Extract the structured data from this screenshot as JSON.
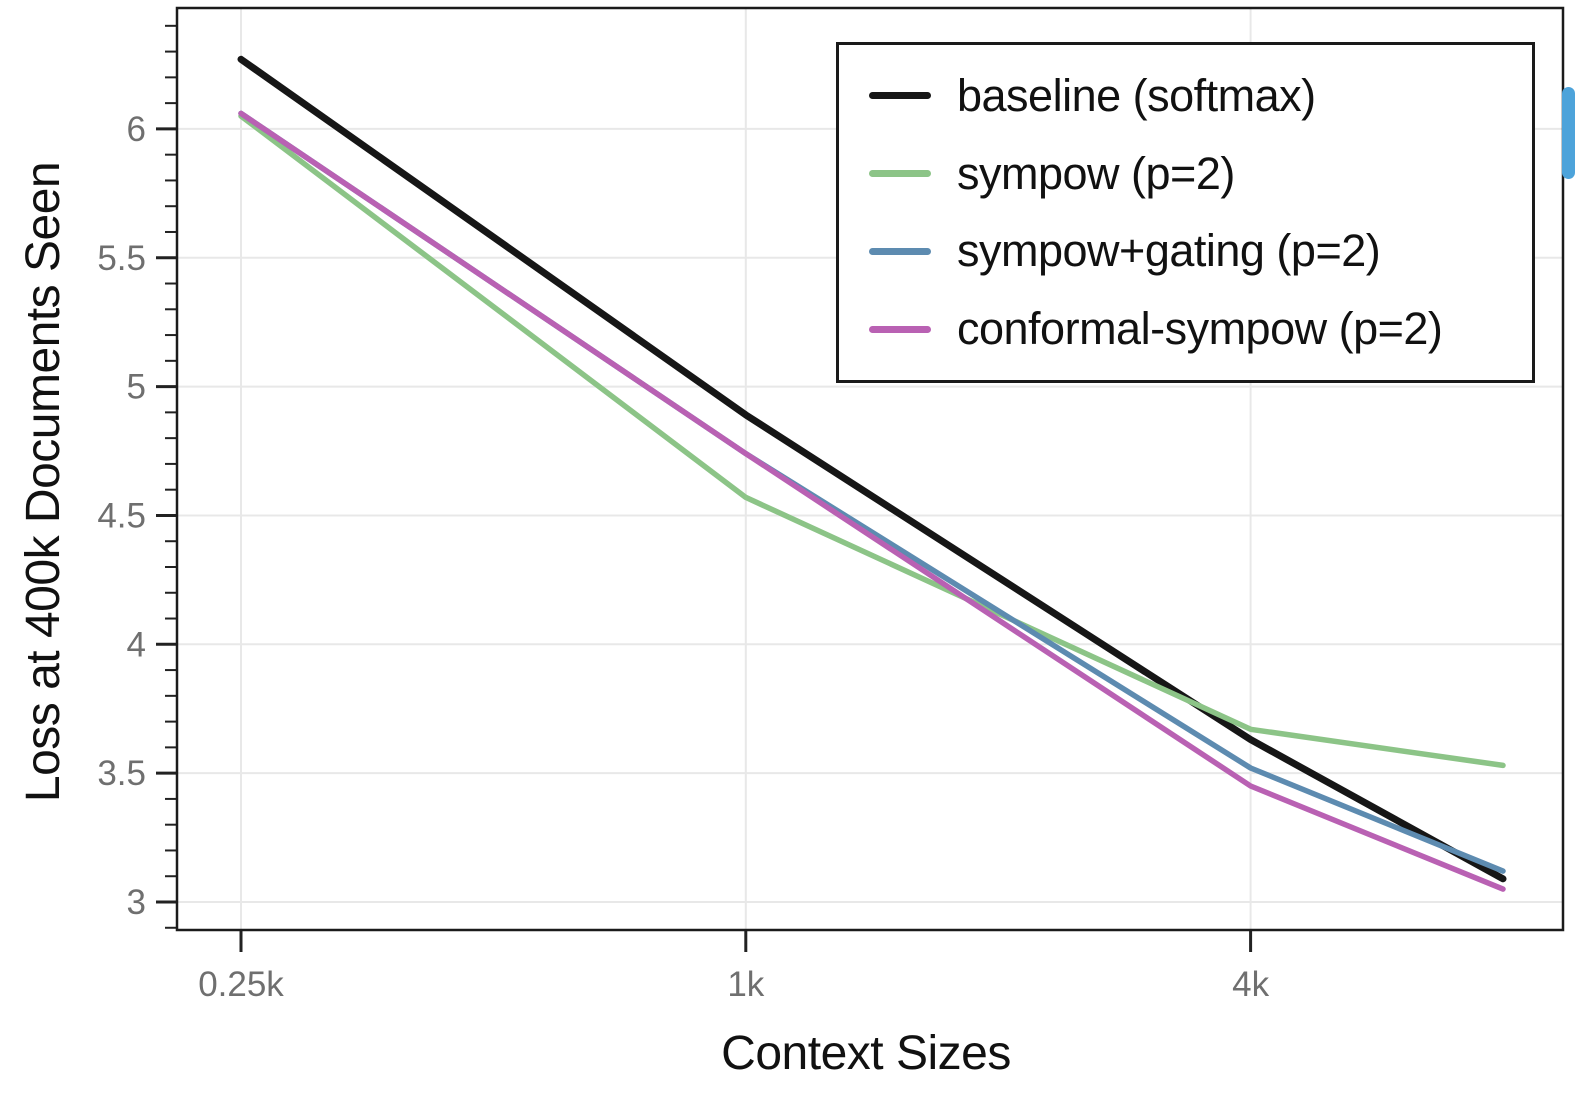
{
  "ui": {
    "scrollbar": {
      "color": "#4da3da"
    }
  },
  "chart_data": {
    "type": "line",
    "title": "",
    "xlabel": "Context Sizes",
    "ylabel": "Loss at 400k Documents Seen",
    "x_scale": "log2",
    "x_units_k": [
      0.25,
      1,
      4,
      8
    ],
    "x_tick_values": [
      0.25,
      1,
      4
    ],
    "x_tick_labels": [
      "0.25k",
      "1k",
      "4k"
    ],
    "y_ticks": [
      3,
      3.5,
      4,
      4.5,
      5,
      5.5,
      6
    ],
    "ylim": [
      2.89,
      6.47
    ],
    "xlim_k": [
      0.21,
      9.7
    ],
    "grid": true,
    "legend_position": "upper right inside",
    "series": [
      {
        "name": "baseline (softmax)",
        "color": "#161616",
        "values": [
          6.27,
          4.89,
          3.63,
          3.09
        ]
      },
      {
        "name": "sympow (p=2)",
        "color": "#8cc487",
        "values": [
          6.05,
          4.57,
          3.67,
          3.53
        ]
      },
      {
        "name": "sympow+gating (p=2)",
        "color": "#5d8bb0",
        "values": [
          6.06,
          4.74,
          3.52,
          3.12
        ]
      },
      {
        "name": "conformal-sympow (p=2)",
        "color": "#b961b3",
        "values": [
          6.06,
          4.74,
          3.45,
          3.05
        ]
      }
    ]
  }
}
